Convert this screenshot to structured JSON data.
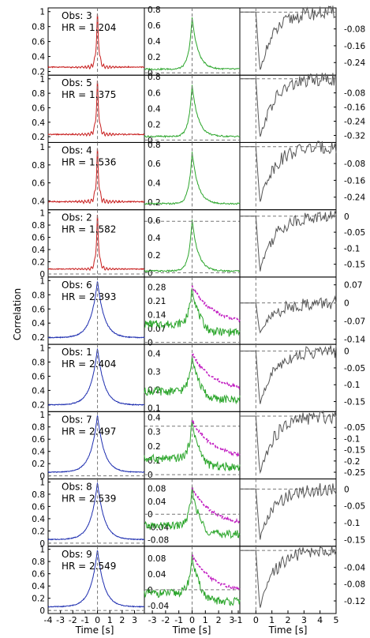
{
  "figure": {
    "ylabel": "Correlation",
    "col1_xlabel": "Time [s]",
    "col2_xlabel": "Time [s]",
    "col3_xlabel": "Time [s]",
    "col1_xticks": [
      "-4",
      "-3",
      "-2",
      "-1",
      "0",
      "1",
      "2",
      "3"
    ],
    "col2_xticks": [
      "-3",
      "-2",
      "-1",
      "0",
      "1",
      "2",
      "3",
      "-1"
    ],
    "col3_xticks": [
      "0",
      "1",
      "2",
      "3",
      "4",
      "5"
    ],
    "colors": {
      "red": "#c81e1e",
      "blue": "#1f2fb0",
      "green": "#2aa52a",
      "magenta": "#c21fc2",
      "gray": "#555555"
    }
  },
  "chart_data": [
    {
      "type": "line",
      "panel": 1,
      "label": "Obs: 3",
      "hr": "HR = 1.204",
      "color": "red",
      "ylim": [
        0.15,
        1.05
      ],
      "yticks": [
        "0.2",
        "0.4",
        "0.6",
        "0.8",
        "1"
      ],
      "mid_yticks": [
        "0",
        "0.2",
        "0.4",
        "0.6",
        "0.8"
      ],
      "mid_ylim": [
        -0.03,
        0.82
      ],
      "mid_magenta": false,
      "right_yticks": [
        "-0.08",
        "-0.16",
        "-0.24"
      ],
      "right_ylim": [
        -0.3,
        0.02
      ],
      "right_min": -0.28
    },
    {
      "type": "line",
      "panel": 2,
      "label": "Obs: 5",
      "hr": "HR = 1.375",
      "color": "red",
      "ylim": [
        0.12,
        1.05
      ],
      "yticks": [
        "0.2",
        "0.4",
        "0.6",
        "0.8",
        "1"
      ],
      "mid_yticks": [
        "0",
        "0.2",
        "0.4",
        "0.6",
        "0.8"
      ],
      "mid_ylim": [
        -0.03,
        0.82
      ],
      "mid_magenta": false,
      "right_yticks": [
        "-0.08",
        "-0.16",
        "-0.24",
        "-0.32"
      ],
      "right_ylim": [
        -0.36,
        0.02
      ],
      "right_min": -0.34
    },
    {
      "type": "line",
      "panel": 3,
      "label": "Obs: 4",
      "hr": "HR = 1.536",
      "color": "red",
      "ylim": [
        0.3,
        1.05
      ],
      "yticks": [
        "0.4",
        "0.6",
        "0.8",
        "1"
      ],
      "mid_yticks": [
        "0.2",
        "0.4",
        "0.6",
        "0.8"
      ],
      "mid_ylim": [
        0.12,
        0.82
      ],
      "mid_magenta": false,
      "right_yticks": [
        "-0.08",
        "-0.16",
        "-0.24"
      ],
      "right_ylim": [
        -0.3,
        0.02
      ],
      "right_min": -0.26
    },
    {
      "type": "line",
      "panel": 4,
      "label": "Obs: 2",
      "hr": "HR = 1.582",
      "color": "red",
      "ylim": [
        -0.05,
        1.05
      ],
      "yticks": [
        "0",
        "0.2",
        "0.4",
        "0.6",
        "0.8",
        "1"
      ],
      "mid_yticks": [
        "0",
        "0.2",
        "0.4",
        "0.6"
      ],
      "mid_ylim": [
        -0.05,
        0.72
      ],
      "mid_magenta": false,
      "right_yticks": [
        "0",
        "-0.05",
        "-0.1",
        "-0.15"
      ],
      "right_ylim": [
        -0.19,
        0.02
      ],
      "right_min": -0.17
    },
    {
      "type": "line",
      "panel": 5,
      "label": "Obs: 6",
      "hr": "HR = 2.393",
      "color": "blue",
      "ylim": [
        0.1,
        1.05
      ],
      "yticks": [
        "0.2",
        "0.4",
        "0.6",
        "0.8",
        "1"
      ],
      "mid_yticks": [
        "0",
        "0.07",
        "0.14",
        "0.21",
        "0.28"
      ],
      "mid_ylim": [
        -0.01,
        0.33
      ],
      "mid_magenta": true,
      "right_yticks": [
        "0.07",
        "0",
        "-0.07",
        "-0.14"
      ],
      "right_ylim": [
        -0.16,
        0.1
      ],
      "right_min": -0.12
    },
    {
      "type": "line",
      "panel": 6,
      "label": "Obs: 1",
      "hr": "HR = 2.404",
      "color": "blue",
      "ylim": [
        0.1,
        1.05
      ],
      "yticks": [
        "0.2",
        "0.4",
        "0.6",
        "0.8",
        "1"
      ],
      "mid_yticks": [
        "0.1",
        "0.2",
        "0.3",
        "0.4"
      ],
      "mid_ylim": [
        0.08,
        0.45
      ],
      "mid_magenta": true,
      "right_yticks": [
        "0",
        "-0.05",
        "-0.1",
        "-0.15"
      ],
      "right_ylim": [
        -0.18,
        0.02
      ],
      "right_min": -0.16
    },
    {
      "type": "line",
      "panel": 7,
      "label": "Obs: 7",
      "hr": "HR = 2.497",
      "color": "blue",
      "ylim": [
        -0.05,
        1.05
      ],
      "yticks": [
        "0",
        "0.2",
        "0.4",
        "0.6",
        "0.8",
        "1"
      ],
      "mid_yticks": [
        "0",
        "0.1",
        "0.2",
        "0.3",
        "0.4"
      ],
      "mid_ylim": [
        -0.03,
        0.44
      ],
      "mid_magenta": true,
      "right_yticks": [
        "-0.05",
        "-0.1",
        "-0.15",
        "-0.2",
        "-0.25"
      ],
      "right_ylim": [
        -0.28,
        0.02
      ],
      "right_min": -0.26
    },
    {
      "type": "line",
      "panel": 8,
      "label": "Obs: 8",
      "hr": "HR = 2.539",
      "color": "blue",
      "ylim": [
        -0.05,
        1.05
      ],
      "yticks": [
        "0",
        "0.2",
        "0.4",
        "0.6",
        "0.8",
        "1"
      ],
      "mid_yticks": [
        "-0.08",
        "-0.04",
        "0",
        "0.04",
        "0.08"
      ],
      "mid_ylim": [
        -0.1,
        0.11
      ],
      "mid_magenta": true,
      "right_yticks": [
        "0",
        "-0.05",
        "-0.1",
        "-0.15"
      ],
      "right_ylim": [
        -0.17,
        0.03
      ],
      "right_min": -0.15
    },
    {
      "type": "line",
      "panel": 9,
      "label": "Obs: 9",
      "hr": "HR = 2.549",
      "color": "blue",
      "ylim": [
        -0.05,
        1.05
      ],
      "yticks": [
        "0",
        "0.2",
        "0.4",
        "0.6",
        "0.8",
        "1"
      ],
      "mid_yticks": [
        "-0.04",
        "0",
        "0.04",
        "0.08"
      ],
      "mid_ylim": [
        -0.06,
        0.11
      ],
      "mid_magenta": true,
      "right_yticks": [
        "-0.04",
        "-0.08",
        "-0.12"
      ],
      "right_ylim": [
        -0.15,
        0.01
      ],
      "right_min": -0.14
    }
  ]
}
